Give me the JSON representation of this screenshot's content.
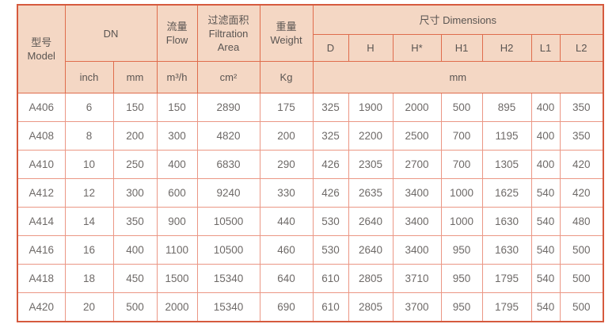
{
  "chart_data": {
    "type": "table",
    "title": "",
    "header": {
      "model_zh": "型号",
      "model_en": "Model",
      "dn": "DN",
      "flow_zh": "流量",
      "flow_en": "Flow",
      "area_zh": "过滤面积",
      "area_en": "Filtration Area",
      "weight_zh": "重量",
      "weight_en": "Weight",
      "dims": "尺寸 Dimensions",
      "dim_cols": [
        "D",
        "H",
        "H*",
        "H1",
        "H2",
        "L1",
        "L2"
      ],
      "unit_inch": "inch",
      "unit_mm": "mm",
      "unit_flow": "m³/h",
      "unit_area": "cm²",
      "unit_weight": "Kg",
      "unit_dims": "mm"
    },
    "columns": [
      "Model",
      "DN inch",
      "DN mm",
      "Flow m³/h",
      "Filtration Area cm²",
      "Weight Kg",
      "D mm",
      "H mm",
      "H* mm",
      "H1 mm",
      "H2 mm",
      "L1 mm",
      "L2 mm"
    ],
    "rows": [
      [
        "A406",
        "6",
        "150",
        "150",
        "2890",
        "175",
        "325",
        "1900",
        "2000",
        "500",
        "895",
        "400",
        "350"
      ],
      [
        "A408",
        "8",
        "200",
        "300",
        "4820",
        "200",
        "325",
        "2200",
        "2500",
        "700",
        "1195",
        "400",
        "350"
      ],
      [
        "A410",
        "10",
        "250",
        "400",
        "6830",
        "290",
        "426",
        "2305",
        "2700",
        "700",
        "1305",
        "400",
        "420"
      ],
      [
        "A412",
        "12",
        "300",
        "600",
        "9240",
        "330",
        "426",
        "2635",
        "3400",
        "1000",
        "1625",
        "540",
        "420"
      ],
      [
        "A414",
        "14",
        "350",
        "900",
        "10500",
        "440",
        "530",
        "2640",
        "3400",
        "1000",
        "1630",
        "540",
        "480"
      ],
      [
        "A416",
        "16",
        "400",
        "1100",
        "10500",
        "460",
        "530",
        "2640",
        "3400",
        "950",
        "1630",
        "540",
        "500"
      ],
      [
        "A418",
        "18",
        "450",
        "1500",
        "15340",
        "640",
        "610",
        "2805",
        "3710",
        "950",
        "1795",
        "540",
        "500"
      ],
      [
        "A420",
        "20",
        "500",
        "2000",
        "15340",
        "690",
        "610",
        "2805",
        "3700",
        "950",
        "1795",
        "540",
        "500"
      ]
    ],
    "colors": {
      "header_bg": "#f4d7c4",
      "header_border": "#df6c4c",
      "body_border": "#eb9785",
      "outer_border": "#d65a3e",
      "header_text": "#5a5552",
      "body_text": "#6e6a68",
      "page_bg": "#ffffff"
    }
  }
}
